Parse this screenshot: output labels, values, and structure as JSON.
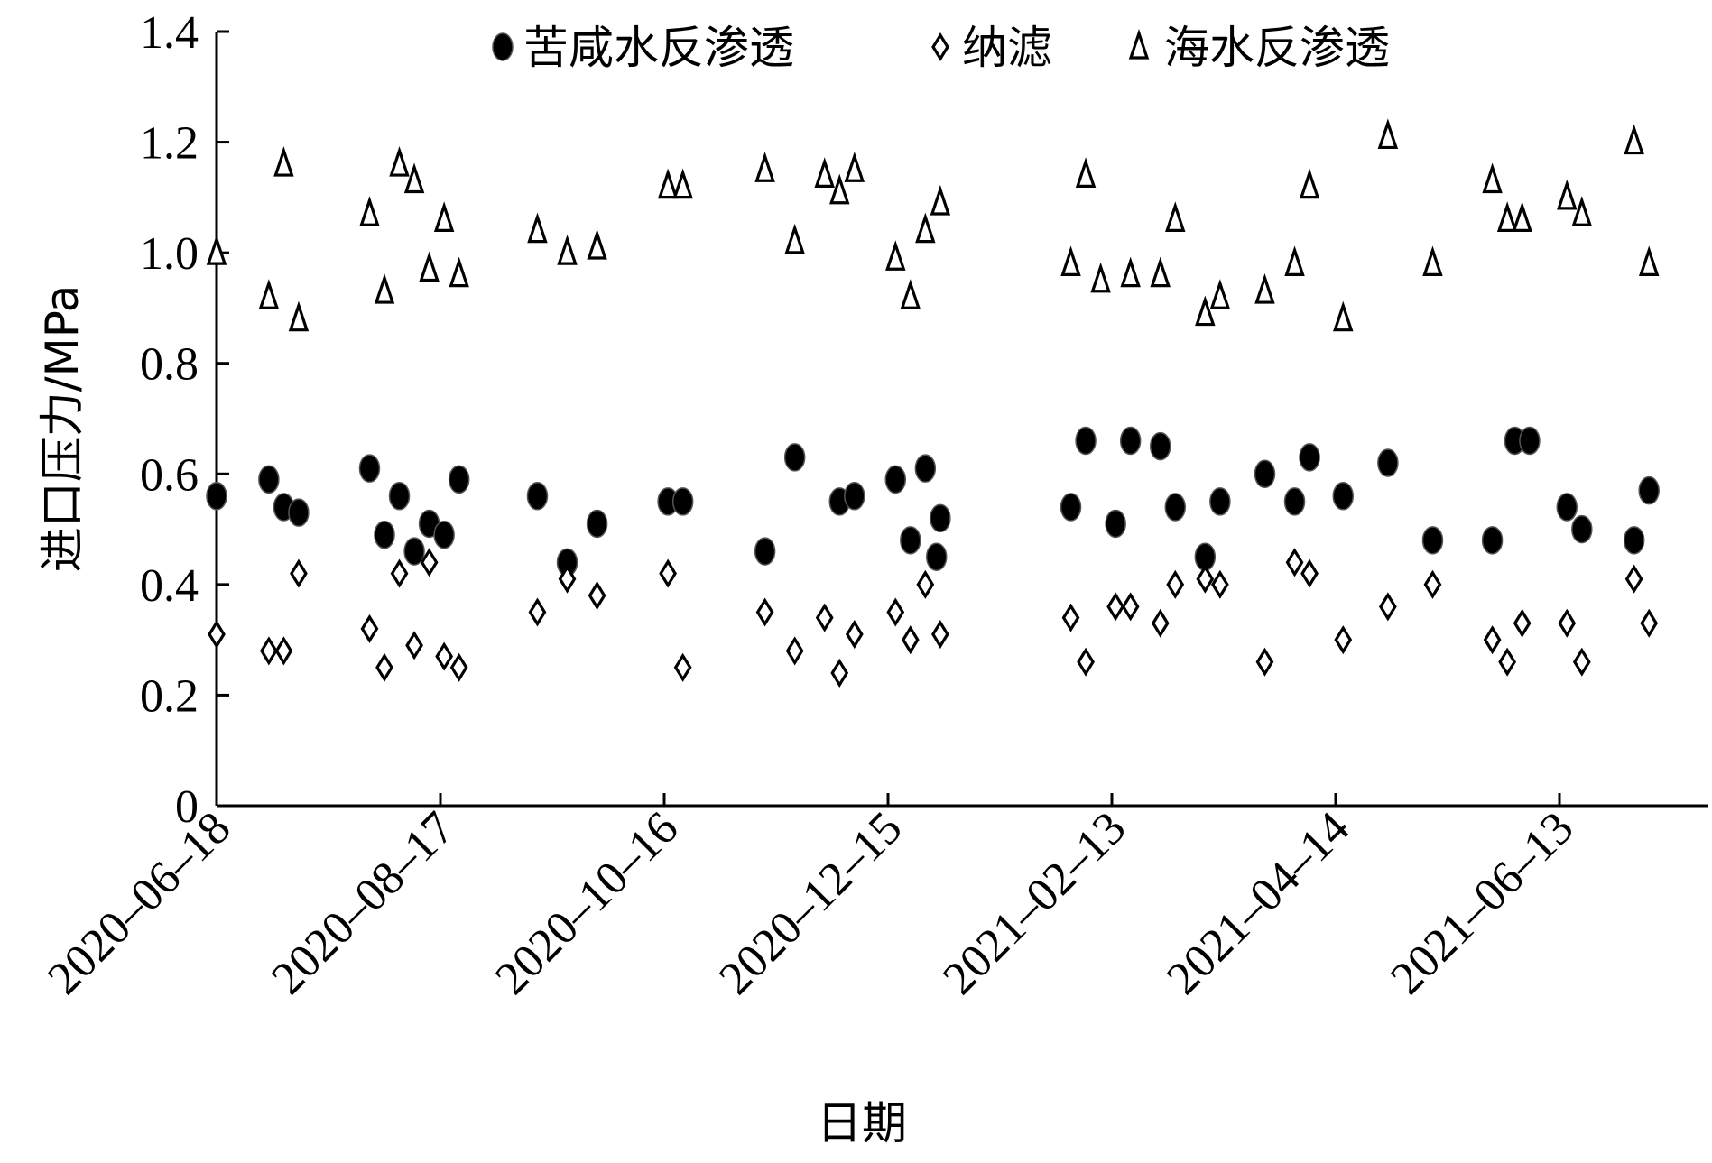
{
  "chart_data": {
    "type": "scatter",
    "title": "",
    "xlabel": "日期",
    "ylabel": "进口压力/MPa",
    "x_axis": {
      "type": "date",
      "min": "2020-06-18",
      "max": "2021-08-20",
      "ticks": [
        "2020-06-18",
        "2020-08-17",
        "2020-10-16",
        "2020-12-15",
        "2021-02-13",
        "2021-04-14",
        "2021-06-13"
      ]
    },
    "y_axis": {
      "min": 0,
      "max": 1.4,
      "ticks": [
        0,
        0.2,
        0.4,
        0.6,
        0.8,
        1.0,
        1.2,
        1.4
      ],
      "tick_labels": [
        "0",
        "0.2",
        "0.4",
        "0.6",
        "0.8",
        "1.0",
        "1.2",
        "1.4"
      ]
    },
    "grid": false,
    "legend_position": "top",
    "series": [
      {
        "name": "苦咸水反渗透",
        "marker": "circle",
        "color": "#000000",
        "points": [
          [
            "2020-06-18",
            0.56
          ],
          [
            "2020-07-02",
            0.59
          ],
          [
            "2020-07-06",
            0.54
          ],
          [
            "2020-07-10",
            0.53
          ],
          [
            "2020-07-29",
            0.61
          ],
          [
            "2020-08-02",
            0.49
          ],
          [
            "2020-08-06",
            0.56
          ],
          [
            "2020-08-10",
            0.46
          ],
          [
            "2020-08-14",
            0.51
          ],
          [
            "2020-08-18",
            0.49
          ],
          [
            "2020-08-22",
            0.59
          ],
          [
            "2020-09-12",
            0.56
          ],
          [
            "2020-09-20",
            0.44
          ],
          [
            "2020-09-28",
            0.51
          ],
          [
            "2020-10-17",
            0.55
          ],
          [
            "2020-10-21",
            0.55
          ],
          [
            "2020-11-12",
            0.46
          ],
          [
            "2020-11-20",
            0.63
          ],
          [
            "2020-12-28",
            0.45
          ],
          [
            "2020-12-02",
            0.55
          ],
          [
            "2020-12-06",
            0.56
          ],
          [
            "2020-12-17",
            0.59
          ],
          [
            "2020-12-21",
            0.48
          ],
          [
            "2020-12-25",
            0.61
          ],
          [
            "2020-12-29",
            0.52
          ],
          [
            "2021-02-02",
            0.54
          ],
          [
            "2021-02-06",
            0.66
          ],
          [
            "2021-02-14",
            0.51
          ],
          [
            "2021-02-18",
            0.66
          ],
          [
            "2021-02-26",
            0.65
          ],
          [
            "2021-03-02",
            0.54
          ],
          [
            "2021-03-10",
            0.45
          ],
          [
            "2021-03-14",
            0.55
          ],
          [
            "2021-03-26",
            0.6
          ],
          [
            "2021-04-03",
            0.55
          ],
          [
            "2021-04-07",
            0.63
          ],
          [
            "2021-04-16",
            0.56
          ],
          [
            "2021-04-28",
            0.62
          ],
          [
            "2021-05-10",
            0.48
          ],
          [
            "2021-05-26",
            0.48
          ],
          [
            "2021-06-01",
            0.66
          ],
          [
            "2021-06-05",
            0.66
          ],
          [
            "2021-06-15",
            0.54
          ],
          [
            "2021-06-19",
            0.5
          ],
          [
            "2021-07-03",
            0.48
          ],
          [
            "2021-07-07",
            0.57
          ]
        ]
      },
      {
        "name": "纳滤",
        "marker": "diamond",
        "color": "#000000",
        "points": [
          [
            "2020-06-18",
            0.31
          ],
          [
            "2020-07-02",
            0.28
          ],
          [
            "2020-07-06",
            0.28
          ],
          [
            "2020-07-10",
            0.42
          ],
          [
            "2020-07-29",
            0.32
          ],
          [
            "2020-08-02",
            0.25
          ],
          [
            "2020-08-06",
            0.42
          ],
          [
            "2020-08-10",
            0.29
          ],
          [
            "2020-08-14",
            0.44
          ],
          [
            "2020-08-18",
            0.27
          ],
          [
            "2020-08-22",
            0.25
          ],
          [
            "2020-09-12",
            0.35
          ],
          [
            "2020-09-20",
            0.41
          ],
          [
            "2020-09-28",
            0.38
          ],
          [
            "2020-10-17",
            0.42
          ],
          [
            "2020-10-21",
            0.25
          ],
          [
            "2020-11-12",
            0.35
          ],
          [
            "2020-11-20",
            0.28
          ],
          [
            "2020-11-28",
            0.34
          ],
          [
            "2020-12-02",
            0.24
          ],
          [
            "2020-12-06",
            0.31
          ],
          [
            "2020-12-17",
            0.35
          ],
          [
            "2020-12-21",
            0.3
          ],
          [
            "2020-12-25",
            0.4
          ],
          [
            "2020-12-29",
            0.31
          ],
          [
            "2021-02-02",
            0.34
          ],
          [
            "2021-02-06",
            0.26
          ],
          [
            "2021-02-14",
            0.36
          ],
          [
            "2021-02-18",
            0.36
          ],
          [
            "2021-02-26",
            0.33
          ],
          [
            "2021-03-02",
            0.4
          ],
          [
            "2021-03-10",
            0.41
          ],
          [
            "2021-03-14",
            0.4
          ],
          [
            "2021-03-26",
            0.26
          ],
          [
            "2021-04-03",
            0.44
          ],
          [
            "2021-04-07",
            0.42
          ],
          [
            "2021-04-16",
            0.3
          ],
          [
            "2021-04-28",
            0.36
          ],
          [
            "2021-05-10",
            0.4
          ],
          [
            "2021-05-26",
            0.3
          ],
          [
            "2021-05-30",
            0.26
          ],
          [
            "2021-06-03",
            0.33
          ],
          [
            "2021-06-15",
            0.33
          ],
          [
            "2021-06-19",
            0.26
          ],
          [
            "2021-07-03",
            0.41
          ],
          [
            "2021-07-07",
            0.33
          ]
        ]
      },
      {
        "name": "海水反渗透",
        "marker": "triangle",
        "color": "#000000",
        "points": [
          [
            "2020-06-18",
            1.0
          ],
          [
            "2020-07-02",
            0.92
          ],
          [
            "2020-07-06",
            1.16
          ],
          [
            "2020-07-10",
            0.88
          ],
          [
            "2020-07-29",
            1.07
          ],
          [
            "2020-08-02",
            0.93
          ],
          [
            "2020-08-06",
            1.16
          ],
          [
            "2020-08-10",
            1.13
          ],
          [
            "2020-08-14",
            0.97
          ],
          [
            "2020-08-18",
            1.06
          ],
          [
            "2020-08-22",
            0.96
          ],
          [
            "2020-09-12",
            1.04
          ],
          [
            "2020-09-20",
            1.0
          ],
          [
            "2020-09-28",
            1.01
          ],
          [
            "2020-10-17",
            1.12
          ],
          [
            "2020-10-21",
            1.12
          ],
          [
            "2020-11-12",
            1.15
          ],
          [
            "2020-11-20",
            1.02
          ],
          [
            "2020-11-28",
            1.14
          ],
          [
            "2020-12-02",
            1.11
          ],
          [
            "2020-12-06",
            1.15
          ],
          [
            "2020-12-17",
            0.99
          ],
          [
            "2020-12-21",
            0.92
          ],
          [
            "2020-12-25",
            1.04
          ],
          [
            "2020-12-29",
            1.09
          ],
          [
            "2021-02-02",
            0.98
          ],
          [
            "2021-02-06",
            1.14
          ],
          [
            "2021-02-10",
            0.95
          ],
          [
            "2021-02-18",
            0.96
          ],
          [
            "2021-02-26",
            0.96
          ],
          [
            "2021-03-02",
            1.06
          ],
          [
            "2021-03-10",
            0.89
          ],
          [
            "2021-03-14",
            0.92
          ],
          [
            "2021-03-26",
            0.93
          ],
          [
            "2021-04-03",
            0.98
          ],
          [
            "2021-04-07",
            1.12
          ],
          [
            "2021-04-16",
            0.88
          ],
          [
            "2021-04-28",
            1.21
          ],
          [
            "2021-05-10",
            0.98
          ],
          [
            "2021-05-26",
            1.13
          ],
          [
            "2021-05-30",
            1.06
          ],
          [
            "2021-06-03",
            1.06
          ],
          [
            "2021-06-15",
            1.1
          ],
          [
            "2021-06-19",
            1.07
          ],
          [
            "2021-07-03",
            1.2
          ],
          [
            "2021-07-07",
            0.98
          ]
        ]
      }
    ]
  }
}
